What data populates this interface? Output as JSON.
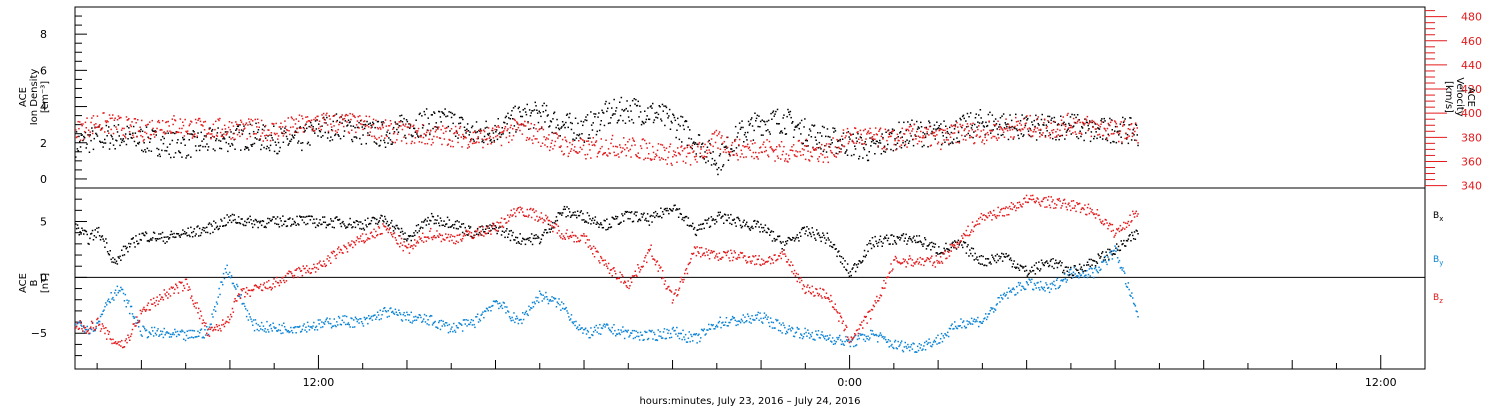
{
  "colors": {
    "black": "#000000",
    "red": "#e41a1c",
    "blue": "#0b84d6"
  },
  "xlabel": "hours:minutes, July 23, 2016 – July 24, 2016",
  "chart_data": [
    {
      "type": "scatter",
      "panel": "top",
      "ylabel_lines": [
        "ACE",
        "Ion Density",
        "[cm⁻³]"
      ],
      "ylim": [
        -0.5,
        9.5
      ],
      "yticks": [
        0,
        2,
        4,
        6,
        8
      ],
      "ylabel_right_lines": [
        "ACE",
        "Velocity",
        "[km/s]"
      ],
      "y2lim": [
        338,
        488
      ],
      "y2ticks": [
        340,
        360,
        380,
        400,
        420,
        440,
        460,
        480
      ],
      "x_tick_labels": [
        {
          "t": 12,
          "label": "12:00"
        },
        {
          "t": 24,
          "label": "0:00"
        },
        {
          "t": 36,
          "label": "12:00"
        }
      ],
      "xlim": [
        6.5,
        37.0
      ],
      "series": [
        {
          "color": "#000000",
          "axis": "left",
          "x": [
            6.5,
            7.0,
            7.5,
            8.0,
            8.5,
            9.0,
            9.5,
            10.0,
            10.5,
            11.0,
            11.5,
            12.0,
            12.5,
            13.0,
            13.5,
            14.0,
            14.5,
            15.0,
            15.5,
            16.0,
            16.5,
            17.0,
            17.5,
            18.0,
            18.5,
            19.0,
            19.5,
            20.0,
            20.5,
            21.0,
            21.5,
            22.0,
            22.5,
            23.0,
            23.5,
            24.0,
            24.5,
            25.0,
            25.5,
            26.0,
            26.5,
            27.0,
            27.5,
            28.0,
            28.5,
            29.0,
            29.5,
            30.0,
            30.5
          ],
          "y": [
            2.0,
            2.3,
            2.4,
            2.2,
            2.0,
            1.9,
            2.1,
            2.3,
            2.4,
            2.2,
            2.1,
            2.8,
            3.0,
            2.6,
            2.5,
            3.0,
            3.2,
            3.2,
            2.5,
            2.8,
            3.4,
            3.6,
            3.0,
            2.8,
            3.6,
            3.9,
            3.7,
            3.2,
            2.2,
            1.0,
            2.5,
            3.2,
            3.3,
            2.6,
            2.2,
            2.0,
            1.6,
            2.4,
            2.6,
            2.5,
            2.8,
            3.2,
            3.0,
            2.8,
            2.9,
            3.0,
            2.6,
            2.8,
            2.6
          ]
        },
        {
          "color": "#e41a1c",
          "axis": "right",
          "x": [
            6.5,
            7.0,
            7.5,
            8.0,
            8.5,
            9.0,
            9.5,
            10.0,
            10.5,
            11.0,
            11.5,
            12.0,
            12.5,
            13.0,
            13.5,
            14.0,
            14.5,
            15.0,
            15.5,
            16.0,
            16.5,
            17.0,
            17.5,
            18.0,
            18.5,
            19.0,
            19.5,
            20.0,
            20.5,
            21.0,
            21.5,
            22.0,
            22.5,
            23.0,
            23.5,
            24.0,
            24.5,
            25.0,
            25.5,
            26.0,
            26.5,
            27.0,
            27.5,
            28.0,
            28.5,
            29.0,
            29.5,
            30.0,
            30.5
          ],
          "y": [
            385,
            393,
            390,
            386,
            392,
            389,
            387,
            388,
            387,
            386,
            390,
            393,
            392,
            391,
            386,
            384,
            382,
            382,
            380,
            381,
            388,
            382,
            374,
            370,
            374,
            372,
            370,
            366,
            366,
            378,
            370,
            372,
            368,
            370,
            368,
            382,
            380,
            378,
            383,
            379,
            385,
            384,
            388,
            390,
            388,
            392,
            389,
            386,
            385
          ]
        }
      ]
    },
    {
      "type": "scatter",
      "panel": "bottom",
      "ylabel_lines": [
        "ACE",
        "B",
        "[nT]"
      ],
      "ylim": [
        -8.2,
        8.0
      ],
      "yticks": [
        -5,
        0,
        5
      ],
      "zero_line": true,
      "xlim": [
        6.5,
        37.0
      ],
      "legend": [
        {
          "label_main": "B",
          "label_sub": "x",
          "color": "#000000"
        },
        {
          "label_main": "B",
          "label_sub": "y",
          "color": "#0b84d6"
        },
        {
          "label_main": "B",
          "label_sub": "z",
          "color": "#e41a1c"
        }
      ],
      "series": [
        {
          "name": "Bx",
          "color": "#000000",
          "x": [
            6.5,
            6.8,
            7.0,
            7.2,
            7.4,
            7.6,
            8.0,
            8.5,
            9.0,
            9.5,
            10.0,
            10.5,
            11.0,
            11.5,
            12.0,
            12.5,
            13.0,
            13.5,
            14.0,
            14.5,
            15.0,
            15.5,
            16.0,
            16.5,
            17.0,
            17.5,
            18.0,
            18.5,
            19.0,
            19.5,
            20.0,
            20.5,
            21.0,
            21.5,
            22.0,
            22.5,
            23.0,
            23.5,
            24.0,
            24.5,
            25.0,
            25.5,
            26.0,
            26.5,
            27.0,
            27.5,
            28.0,
            28.5,
            29.0,
            29.5,
            30.0,
            30.5
          ],
          "y": [
            4.5,
            3.5,
            4.2,
            3.0,
            1.2,
            2.5,
            3.8,
            3.6,
            4.0,
            4.4,
            5.3,
            5.0,
            5.0,
            5.2,
            5.0,
            5.0,
            4.8,
            5.3,
            3.5,
            5.3,
            5.0,
            4.0,
            4.5,
            3.5,
            3.5,
            6.0,
            5.5,
            4.8,
            5.6,
            5.2,
            6.5,
            4.2,
            5.5,
            5.0,
            4.5,
            3.0,
            4.2,
            3.5,
            0.4,
            3.2,
            3.5,
            3.5,
            2.5,
            3.0,
            1.5,
            2.0,
            0.5,
            1.5,
            0.5,
            1.5,
            2.5,
            4.0
          ]
        },
        {
          "name": "By",
          "color": "#0b84d6",
          "x": [
            6.5,
            6.8,
            7.0,
            7.2,
            7.5,
            8.0,
            8.5,
            9.0,
            9.5,
            9.9,
            10.2,
            10.5,
            11.0,
            11.5,
            12.0,
            12.5,
            13.0,
            13.5,
            14.0,
            14.5,
            15.0,
            15.5,
            16.0,
            16.5,
            17.0,
            17.5,
            18.0,
            18.5,
            19.0,
            19.5,
            20.0,
            20.5,
            21.0,
            21.5,
            22.0,
            22.5,
            23.0,
            23.5,
            24.0,
            24.5,
            25.0,
            25.5,
            26.0,
            26.5,
            27.0,
            27.5,
            28.0,
            28.5,
            29.0,
            29.5,
            30.0,
            30.5
          ],
          "y": [
            -4.0,
            -4.5,
            -4.2,
            -2.0,
            -1.0,
            -4.8,
            -5.0,
            -5.2,
            -4.8,
            1.0,
            -1.5,
            -4.2,
            -4.5,
            -4.4,
            -4.2,
            -3.8,
            -4.0,
            -3.0,
            -3.5,
            -3.8,
            -4.5,
            -4.0,
            -2.0,
            -4.0,
            -1.5,
            -2.5,
            -5.0,
            -4.5,
            -5.0,
            -5.2,
            -4.8,
            -5.5,
            -4.0,
            -3.8,
            -3.5,
            -4.5,
            -5.0,
            -5.3,
            -5.8,
            -5.0,
            -6.0,
            -6.2,
            -5.5,
            -4.0,
            -3.8,
            -1.5,
            -0.5,
            -1.0,
            0.5,
            0.5,
            2.5,
            -3.5
          ]
        },
        {
          "name": "Bz",
          "color": "#e41a1c",
          "x": [
            6.5,
            6.8,
            7.0,
            7.3,
            7.6,
            8.0,
            8.5,
            9.0,
            9.5,
            9.9,
            10.2,
            10.6,
            11.0,
            11.5,
            12.0,
            12.5,
            13.0,
            13.5,
            14.0,
            14.5,
            15.0,
            15.5,
            16.0,
            16.5,
            17.0,
            17.5,
            18.0,
            18.5,
            19.0,
            19.5,
            20.0,
            20.5,
            21.0,
            21.5,
            22.0,
            22.5,
            23.0,
            23.5,
            24.0,
            24.5,
            25.0,
            25.5,
            26.0,
            26.5,
            27.0,
            27.5,
            28.0,
            28.5,
            29.0,
            29.5,
            30.0,
            30.5
          ],
          "y": [
            -4.2,
            -4.5,
            -4.0,
            -5.5,
            -6.0,
            -3.0,
            -1.5,
            -0.5,
            -5.0,
            -4.0,
            -1.5,
            -1.0,
            -0.5,
            0.5,
            1.0,
            2.5,
            3.5,
            4.5,
            2.5,
            4.0,
            3.5,
            4.0,
            4.5,
            6.2,
            5.5,
            4.0,
            3.5,
            1.0,
            -0.5,
            2.5,
            -2.0,
            2.5,
            2.0,
            2.0,
            1.5,
            2.0,
            -1.0,
            -1.5,
            -5.5,
            -3.0,
            1.5,
            1.5,
            1.5,
            3.5,
            5.5,
            6.0,
            7.0,
            6.8,
            6.5,
            6.0,
            4.0,
            6.0
          ]
        }
      ]
    }
  ]
}
